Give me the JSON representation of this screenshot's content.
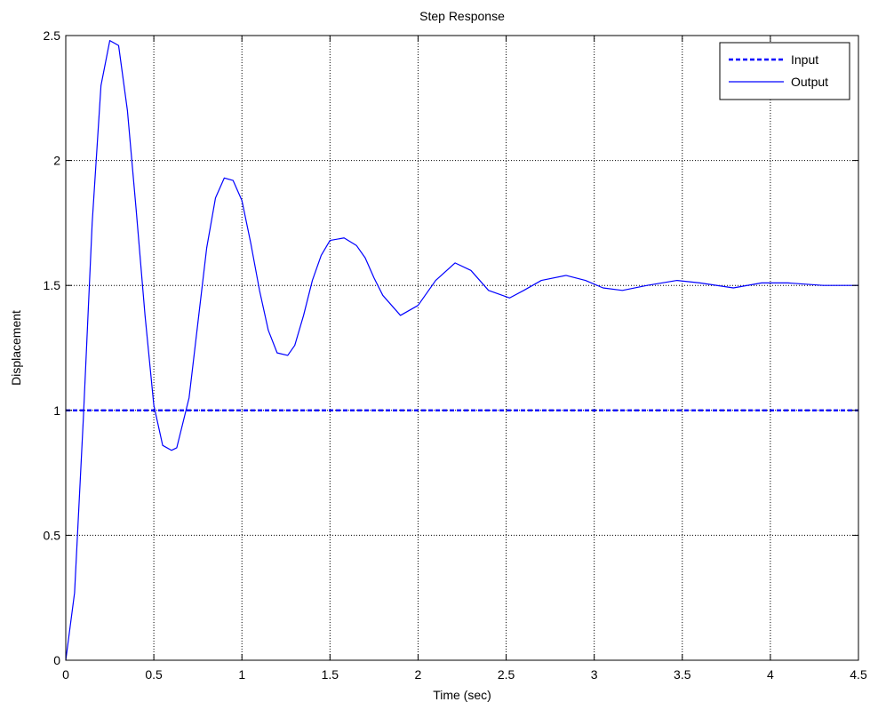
{
  "chart_data": {
    "type": "line",
    "title": "Step Response",
    "xlabel": "Time (sec)",
    "ylabel": "Displacement",
    "xlim": [
      0,
      4.5
    ],
    "ylim": [
      0,
      2.5
    ],
    "xticks": [
      0,
      0.5,
      1,
      1.5,
      2,
      2.5,
      3,
      3.5,
      4,
      4.5
    ],
    "xtick_labels": [
      "0",
      "0.5",
      "1",
      "1.5",
      "2",
      "2.5",
      "3",
      "3.5",
      "4",
      "4.5"
    ],
    "yticks": [
      0,
      0.5,
      1,
      1.5,
      2,
      2.5
    ],
    "ytick_labels": [
      "0",
      "0.5",
      "1",
      "1.5",
      "2",
      "2.5"
    ],
    "grid": true,
    "legend_position": "top-right",
    "series": [
      {
        "name": "Input",
        "style": "dashed",
        "color": "#0000ff",
        "x": [
          0,
          4.5
        ],
        "y": [
          1,
          1
        ]
      },
      {
        "name": "Output",
        "style": "solid",
        "color": "#0000ff",
        "x": [
          0,
          0.05,
          0.1,
          0.15,
          0.2,
          0.25,
          0.3,
          0.35,
          0.4,
          0.45,
          0.5,
          0.55,
          0.6,
          0.63,
          0.7,
          0.75,
          0.8,
          0.85,
          0.9,
          0.95,
          1.0,
          1.05,
          1.1,
          1.15,
          1.2,
          1.26,
          1.3,
          1.35,
          1.4,
          1.45,
          1.5,
          1.58,
          1.65,
          1.7,
          1.75,
          1.8,
          1.9,
          2.0,
          2.1,
          2.21,
          2.3,
          2.4,
          2.52,
          2.6,
          2.7,
          2.84,
          2.95,
          3.05,
          3.16,
          3.3,
          3.47,
          3.6,
          3.79,
          3.95,
          4.1,
          4.3,
          4.5
        ],
        "y": [
          0,
          0.27,
          0.97,
          1.75,
          2.3,
          2.48,
          2.46,
          2.2,
          1.8,
          1.38,
          1.02,
          0.86,
          0.84,
          0.85,
          1.05,
          1.35,
          1.65,
          1.85,
          1.93,
          1.92,
          1.84,
          1.67,
          1.48,
          1.32,
          1.23,
          1.22,
          1.26,
          1.38,
          1.52,
          1.62,
          1.68,
          1.69,
          1.66,
          1.61,
          1.53,
          1.46,
          1.38,
          1.42,
          1.52,
          1.59,
          1.56,
          1.48,
          1.45,
          1.48,
          1.52,
          1.54,
          1.52,
          1.49,
          1.48,
          1.5,
          1.52,
          1.51,
          1.49,
          1.51,
          1.51,
          1.5,
          1.5
        ]
      }
    ]
  }
}
